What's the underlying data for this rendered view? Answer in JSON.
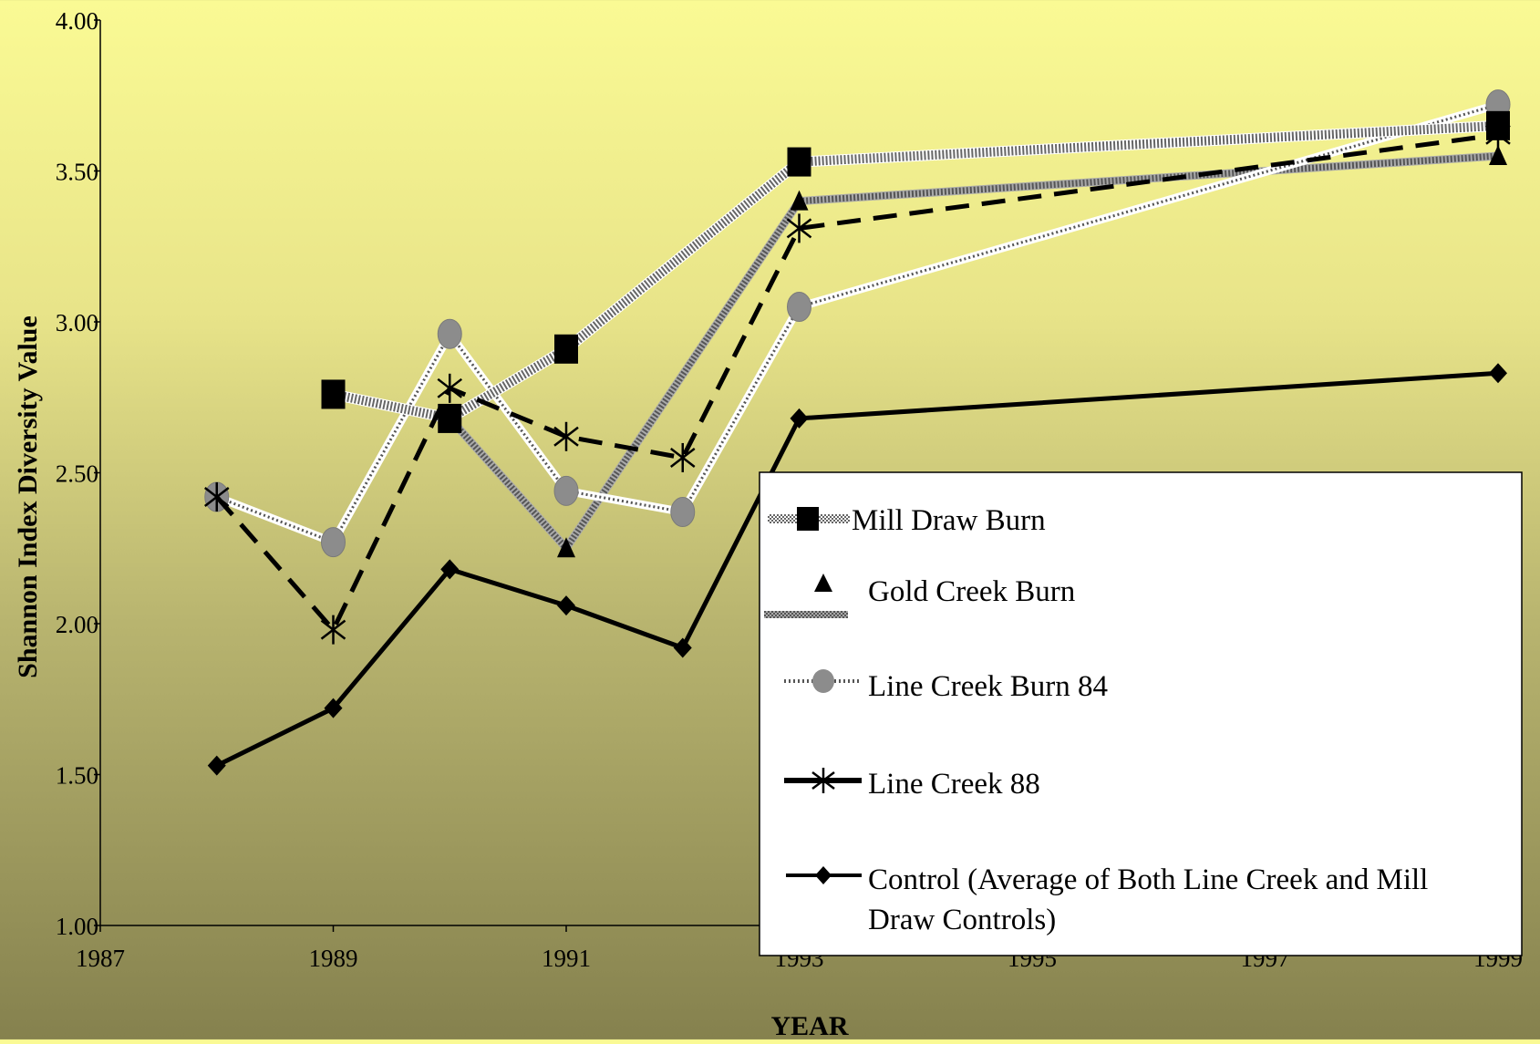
{
  "chart_data": {
    "type": "line",
    "xlabel": "YEAR",
    "ylabel": "Shannon Index Diversity Value",
    "xlim": [
      1987,
      1999
    ],
    "ylim": [
      1.0,
      4.0
    ],
    "x_ticks": [
      "1987",
      "1989",
      "1991",
      "1993",
      "1995",
      "1997",
      "1999"
    ],
    "y_ticks": [
      "1.00",
      "1.50",
      "2.00",
      "2.50",
      "3.00",
      "3.50",
      "4.00"
    ],
    "grid": false,
    "legend_position": "bottom-right",
    "series": [
      {
        "name": "Mill Draw Burn",
        "marker": "square",
        "line_style": "dotted-gray-thick",
        "points": [
          [
            1989,
            2.76
          ],
          [
            1990,
            2.68
          ],
          [
            1991,
            2.91
          ],
          [
            1993,
            3.53
          ],
          [
            1999,
            3.65
          ]
        ]
      },
      {
        "name": "Gold Creek Burn",
        "marker": "triangle",
        "line_style": "gray-thick",
        "points": [
          [
            1989,
            2.76
          ],
          [
            1990,
            2.68
          ],
          [
            1991,
            2.25
          ],
          [
            1993,
            3.4
          ],
          [
            1999,
            3.55
          ]
        ]
      },
      {
        "name": "Line Creek Burn 84",
        "marker": "circle",
        "line_style": "dotted-white",
        "points": [
          [
            1988,
            2.42
          ],
          [
            1989,
            2.27
          ],
          [
            1990,
            2.96
          ],
          [
            1991,
            2.44
          ],
          [
            1992,
            2.37
          ],
          [
            1993,
            3.05
          ],
          [
            1999,
            3.72
          ]
        ]
      },
      {
        "name": "Line Creek 88",
        "marker": "asterisk",
        "line_style": "dashed-black",
        "points": [
          [
            1988,
            2.42
          ],
          [
            1989,
            1.98
          ],
          [
            1990,
            2.78
          ],
          [
            1991,
            2.62
          ],
          [
            1992,
            2.55
          ],
          [
            1993,
            3.31
          ],
          [
            1999,
            3.62
          ]
        ]
      },
      {
        "name": "Control (Average of Both Line Creek and Mill Draw Controls)",
        "marker": "diamond",
        "line_style": "solid-black",
        "points": [
          [
            1988,
            1.53
          ],
          [
            1989,
            1.72
          ],
          [
            1990,
            2.18
          ],
          [
            1991,
            2.06
          ],
          [
            1992,
            1.92
          ],
          [
            1993,
            2.68
          ],
          [
            1999,
            2.83
          ]
        ]
      }
    ]
  },
  "legend": {
    "labels": [
      "Mill Draw Burn",
      "Gold Creek Burn",
      "Line Creek Burn 84",
      "Line Creek 88",
      "Control (Average of Both Line Creek and Mill",
      "Draw Controls)"
    ]
  },
  "colors": {
    "background_top": "#fafa94",
    "background_bottom": "#85814e",
    "marker_gray": "#8c8c8c",
    "line_black": "#000000",
    "legend_bg": "#ffffff"
  }
}
